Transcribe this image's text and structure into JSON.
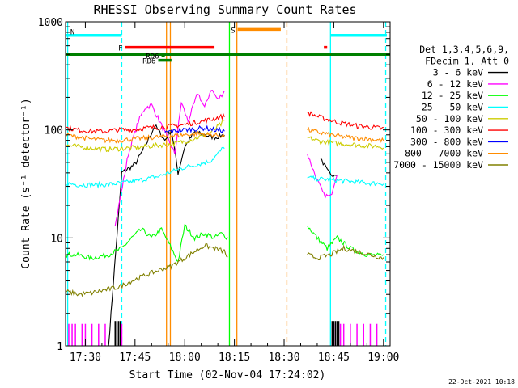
{
  "chart_data": {
    "type": "line",
    "title": "RHESSI Observing Summary Count Rates",
    "xlabel": "Start Time (02-Nov-04 17:24:02)",
    "ylabel": "Count Rate (s⁻¹ detector⁻¹)",
    "yscale": "log",
    "ylim": [
      1,
      1000
    ],
    "xlim": [
      "17:24:02",
      "19:02:00"
    ],
    "x_ticks": [
      "17:30",
      "17:45",
      "18:00",
      "18:15",
      "18:30",
      "18:45",
      "19:00"
    ],
    "y_ticks": [
      "1",
      "10",
      "100",
      "1000"
    ],
    "grid": false,
    "legend": {
      "header_lines": [
        "Det 1,3,4,5,6,9,",
        "FDecim 1, Att 0"
      ],
      "placement": "right"
    },
    "footer_date": "22-Oct-2021 10:18",
    "series": [
      {
        "name": "3 - 6 keV",
        "color": "#000000",
        "points": [
          [
            "17:37",
            1.0
          ],
          [
            "17:41",
            40
          ],
          [
            "17:45",
            48
          ],
          [
            "17:48",
            70
          ],
          [
            "17:51",
            110
          ],
          [
            "17:54",
            80
          ],
          [
            "17:56",
            100
          ],
          [
            "17:58",
            40
          ],
          [
            "18:00",
            70
          ],
          [
            "18:03",
            95
          ],
          [
            "18:06",
            90
          ],
          [
            "18:09",
            85
          ],
          [
            "18:12",
            90
          ],
          [
            "18:41",
            55
          ],
          [
            "18:43",
            42
          ],
          [
            "18:44",
            38
          ],
          [
            "18:46",
            40
          ]
        ]
      },
      {
        "name": "6 - 12 keV",
        "color": "#ff00ff",
        "points": [
          [
            "17:24",
            1.0
          ],
          [
            "17:39",
            13
          ],
          [
            "17:43",
            60
          ],
          [
            "17:46",
            120
          ],
          [
            "17:48",
            160
          ],
          [
            "17:50",
            170
          ],
          [
            "17:53",
            110
          ],
          [
            "17:57",
            60
          ],
          [
            "17:59",
            180
          ],
          [
            "18:01",
            120
          ],
          [
            "18:04",
            220
          ],
          [
            "18:06",
            160
          ],
          [
            "18:08",
            240
          ],
          [
            "18:10",
            190
          ],
          [
            "18:12",
            230
          ],
          [
            "18:37",
            60
          ],
          [
            "18:40",
            34
          ],
          [
            "18:42",
            25
          ],
          [
            "18:44",
            24
          ],
          [
            "18:46",
            40
          ]
        ]
      },
      {
        "name": "12 - 25 keV",
        "color": "#00ff00",
        "points": [
          [
            "17:24",
            7
          ],
          [
            "17:27",
            7
          ],
          [
            "17:32",
            6.5
          ],
          [
            "17:37",
            7
          ],
          [
            "17:41",
            8
          ],
          [
            "17:44",
            10
          ],
          [
            "17:47",
            12
          ],
          [
            "17:50",
            10
          ],
          [
            "17:53",
            12
          ],
          [
            "17:56",
            8
          ],
          [
            "17:58",
            6
          ],
          [
            "18:00",
            13
          ],
          [
            "18:03",
            10
          ],
          [
            "18:06",
            11
          ],
          [
            "18:09",
            10
          ],
          [
            "18:11",
            11
          ],
          [
            "18:13",
            10
          ],
          [
            "18:37",
            13
          ],
          [
            "18:40",
            10
          ],
          [
            "18:43",
            8
          ],
          [
            "18:46",
            10
          ],
          [
            "18:50",
            8
          ],
          [
            "18:55",
            7
          ],
          [
            "19:00",
            6.8
          ]
        ]
      },
      {
        "name": "25 - 50 keV",
        "color": "#00ffff",
        "points": [
          [
            "17:24",
            32
          ],
          [
            "17:28",
            31
          ],
          [
            "17:32",
            31
          ],
          [
            "17:36",
            31
          ],
          [
            "17:40",
            32
          ],
          [
            "17:44",
            33
          ],
          [
            "17:48",
            35
          ],
          [
            "17:52",
            37
          ],
          [
            "17:56",
            41
          ],
          [
            "18:00",
            45
          ],
          [
            "18:04",
            48
          ],
          [
            "18:08",
            52
          ],
          [
            "18:10",
            60
          ],
          [
            "18:12",
            70
          ],
          [
            "18:37",
            36
          ],
          [
            "18:41",
            35
          ],
          [
            "18:46",
            34
          ],
          [
            "18:51",
            33
          ],
          [
            "18:56",
            32
          ],
          [
            "19:00",
            32
          ]
        ]
      },
      {
        "name": "50 - 100 keV",
        "color": "#cccc00",
        "points": [
          [
            "17:24",
            72
          ],
          [
            "17:28",
            70
          ],
          [
            "17:32",
            68
          ],
          [
            "17:36",
            66
          ],
          [
            "17:40",
            67
          ],
          [
            "17:44",
            68
          ],
          [
            "17:48",
            70
          ],
          [
            "17:52",
            72
          ],
          [
            "17:56",
            74
          ],
          [
            "18:00",
            78
          ],
          [
            "18:04",
            85
          ],
          [
            "18:08",
            95
          ],
          [
            "18:12",
            120
          ],
          [
            "18:37",
            85
          ],
          [
            "18:41",
            78
          ],
          [
            "18:46",
            75
          ],
          [
            "18:51",
            73
          ],
          [
            "18:56",
            71
          ],
          [
            "19:00",
            70
          ]
        ]
      },
      {
        "name": "100 - 300 keV",
        "color": "#ff0000",
        "points": [
          [
            "17:24",
            105
          ],
          [
            "17:28",
            100
          ],
          [
            "17:32",
            97
          ],
          [
            "17:36",
            97
          ],
          [
            "17:40",
            100
          ],
          [
            "17:44",
            100
          ],
          [
            "17:48",
            104
          ],
          [
            "17:52",
            106
          ],
          [
            "17:56",
            108
          ],
          [
            "18:00",
            112
          ],
          [
            "18:04",
            118
          ],
          [
            "18:08",
            125
          ],
          [
            "18:12",
            135
          ],
          [
            "18:37",
            145
          ],
          [
            "18:41",
            130
          ],
          [
            "18:46",
            118
          ],
          [
            "18:51",
            110
          ],
          [
            "18:56",
            106
          ],
          [
            "19:00",
            103
          ]
        ]
      },
      {
        "name": "300 - 800 keV",
        "color": "#0000ff",
        "points": [
          [
            "17:54",
            95
          ],
          [
            "17:57",
            98
          ],
          [
            "18:00",
            100
          ],
          [
            "18:03",
            102
          ],
          [
            "18:06",
            104
          ],
          [
            "18:09",
            100
          ],
          [
            "18:12",
            98
          ]
        ]
      },
      {
        "name": "800 - 7000 keV",
        "color": "#ff8c00",
        "points": [
          [
            "17:24",
            90
          ],
          [
            "17:28",
            86
          ],
          [
            "17:32",
            82
          ],
          [
            "17:36",
            80
          ],
          [
            "17:40",
            80
          ],
          [
            "17:44",
            82
          ],
          [
            "17:48",
            84
          ],
          [
            "17:52",
            86
          ],
          [
            "17:56",
            88
          ],
          [
            "18:00",
            90
          ],
          [
            "18:04",
            92
          ],
          [
            "18:08",
            90
          ],
          [
            "18:12",
            88
          ],
          [
            "18:37",
            100
          ],
          [
            "18:41",
            94
          ],
          [
            "18:46",
            88
          ],
          [
            "18:51",
            84
          ],
          [
            "18:56",
            82
          ],
          [
            "19:00",
            80
          ]
        ]
      },
      {
        "name": "7000 - 15000 keV",
        "color": "#808000",
        "points": [
          [
            "17:24",
            3.2
          ],
          [
            "17:28",
            3.0
          ],
          [
            "17:32",
            3.1
          ],
          [
            "17:36",
            3.3
          ],
          [
            "17:40",
            3.5
          ],
          [
            "17:44",
            4.0
          ],
          [
            "17:48",
            4.5
          ],
          [
            "17:52",
            5.0
          ],
          [
            "17:56",
            5.5
          ],
          [
            "18:00",
            6.5
          ],
          [
            "18:03",
            7.5
          ],
          [
            "18:06",
            8.5
          ],
          [
            "18:09",
            8.0
          ],
          [
            "18:12",
            7.5
          ],
          [
            "18:13",
            6.5
          ],
          [
            "18:37",
            7
          ],
          [
            "18:40",
            6.5
          ],
          [
            "18:44",
            7
          ],
          [
            "18:48",
            8
          ],
          [
            "18:52",
            7.5
          ],
          [
            "18:56",
            7
          ],
          [
            "19:00",
            6.5
          ]
        ]
      }
    ],
    "flags": [
      {
        "label": "N",
        "color": "#00ffff",
        "y": 750,
        "segments": [
          [
            "17:24",
            "17:41"
          ],
          [
            "18:44",
            "19:01"
          ]
        ]
      },
      {
        "label": "F",
        "color": "#ff0000",
        "y": 580,
        "segments": [
          [
            "17:42",
            "18:09"
          ],
          [
            "18:42",
            "18:43"
          ]
        ]
      },
      {
        "label": "S",
        "color": "#ff8c00",
        "y": 850,
        "segments": [
          [
            "18:16",
            "18:29"
          ]
        ]
      },
      {
        "label": "",
        "color": "#008000",
        "y": 500,
        "segments": [
          [
            "17:24",
            "19:02"
          ]
        ]
      },
      {
        "label": "RD6",
        "color": "#008000",
        "y": 440,
        "segments": [
          [
            "17:52",
            "17:56"
          ]
        ]
      },
      {
        "label": "RD6",
        "color": "#008000",
        "y": 490,
        "segments": [
          [
            "17:53",
            "17:54"
          ]
        ]
      }
    ],
    "vertical_lines": [
      {
        "t": "17:24:40",
        "color": "#00ffff",
        "style": "solid"
      },
      {
        "t": "17:41:00",
        "color": "#00ffff",
        "style": "dashed"
      },
      {
        "t": "17:54:30",
        "color": "#ff8c00",
        "style": "solid"
      },
      {
        "t": "17:55:40",
        "color": "#ff8c00",
        "style": "solid"
      },
      {
        "t": "18:13:30",
        "color": "#00ff00",
        "style": "solid"
      },
      {
        "t": "18:15:45",
        "color": "#ff8c00",
        "style": "solid"
      },
      {
        "t": "18:30:50",
        "color": "#ff8c00",
        "style": "dashed"
      },
      {
        "t": "18:44:00",
        "color": "#00ffff",
        "style": "solid"
      },
      {
        "t": "19:00:40",
        "color": "#00ffff",
        "style": "dashed"
      }
    ],
    "spikes": [
      {
        "color": "#ff00ff",
        "t": [
          "17:25",
          "17:26",
          "17:27",
          "17:29",
          "17:30",
          "17:32",
          "17:34",
          "17:36",
          "17:39",
          "17:41",
          "18:45",
          "18:47",
          "18:48",
          "18:50",
          "18:52",
          "18:54",
          "18:56",
          "18:58"
        ],
        "top": 1.6
      },
      {
        "color": "#000000",
        "t": [
          "17:39",
          "17:39:30",
          "17:40",
          "17:40:30",
          "18:44:30",
          "18:45",
          "18:45:30",
          "18:46",
          "18:46:30"
        ],
        "top": 1.7
      }
    ]
  }
}
